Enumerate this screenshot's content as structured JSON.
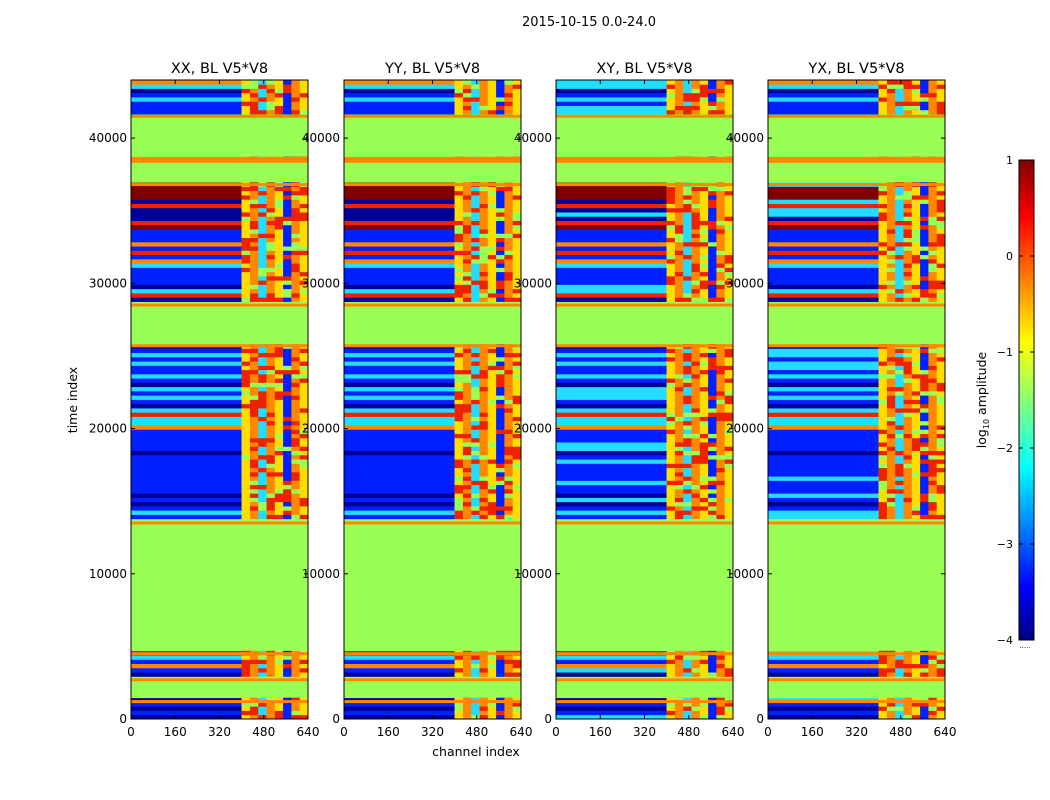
{
  "suptitle": "2015-10-15 0.0-24.0",
  "xlabel": "channel index",
  "ylabel": "time index",
  "colorbar": {
    "label": "log$_{10}$ amplitude",
    "label_main": "log",
    "label_sub": "10",
    "label_tail": " amplitude",
    "range": [
      -4,
      1
    ],
    "ticks": [
      "1",
      "0",
      "−1",
      "−2",
      "−3",
      "−4"
    ],
    "extra_tick": ".....",
    "colormap": "jet"
  },
  "colors": {
    "flagged": "#99ff55",
    "orange": "#ff8800",
    "red": "#ee2200",
    "dark_red": "#800000",
    "cyan": "#22ddff",
    "blue": "#0020ff",
    "dark_blue": "#000099",
    "yellow": "#ffdd00"
  },
  "chart_data": {
    "type": "heatmap",
    "x_ticks": [
      0,
      160,
      320,
      480,
      640
    ],
    "y_ticks": [
      0,
      10000,
      20000,
      30000,
      40000
    ],
    "xlim": [
      0,
      640
    ],
    "ylim": [
      0,
      44000
    ],
    "rfi_channel_range": [
      400,
      640
    ],
    "flagged_time_ranges": [
      [
        1200,
        2700
      ],
      [
        4500,
        13500
      ],
      [
        25700,
        28500
      ],
      [
        36800,
        38400
      ],
      [
        38600,
        41500
      ]
    ],
    "high_amplitude_time_range": [
      33500,
      36900
    ],
    "panels": [
      {
        "title": "XX, BL V5*V8"
      },
      {
        "title": "YY, BL V5*V8"
      },
      {
        "title": "XY, BL V5*V8"
      },
      {
        "title": "YX, BL V5*V8"
      }
    ]
  }
}
